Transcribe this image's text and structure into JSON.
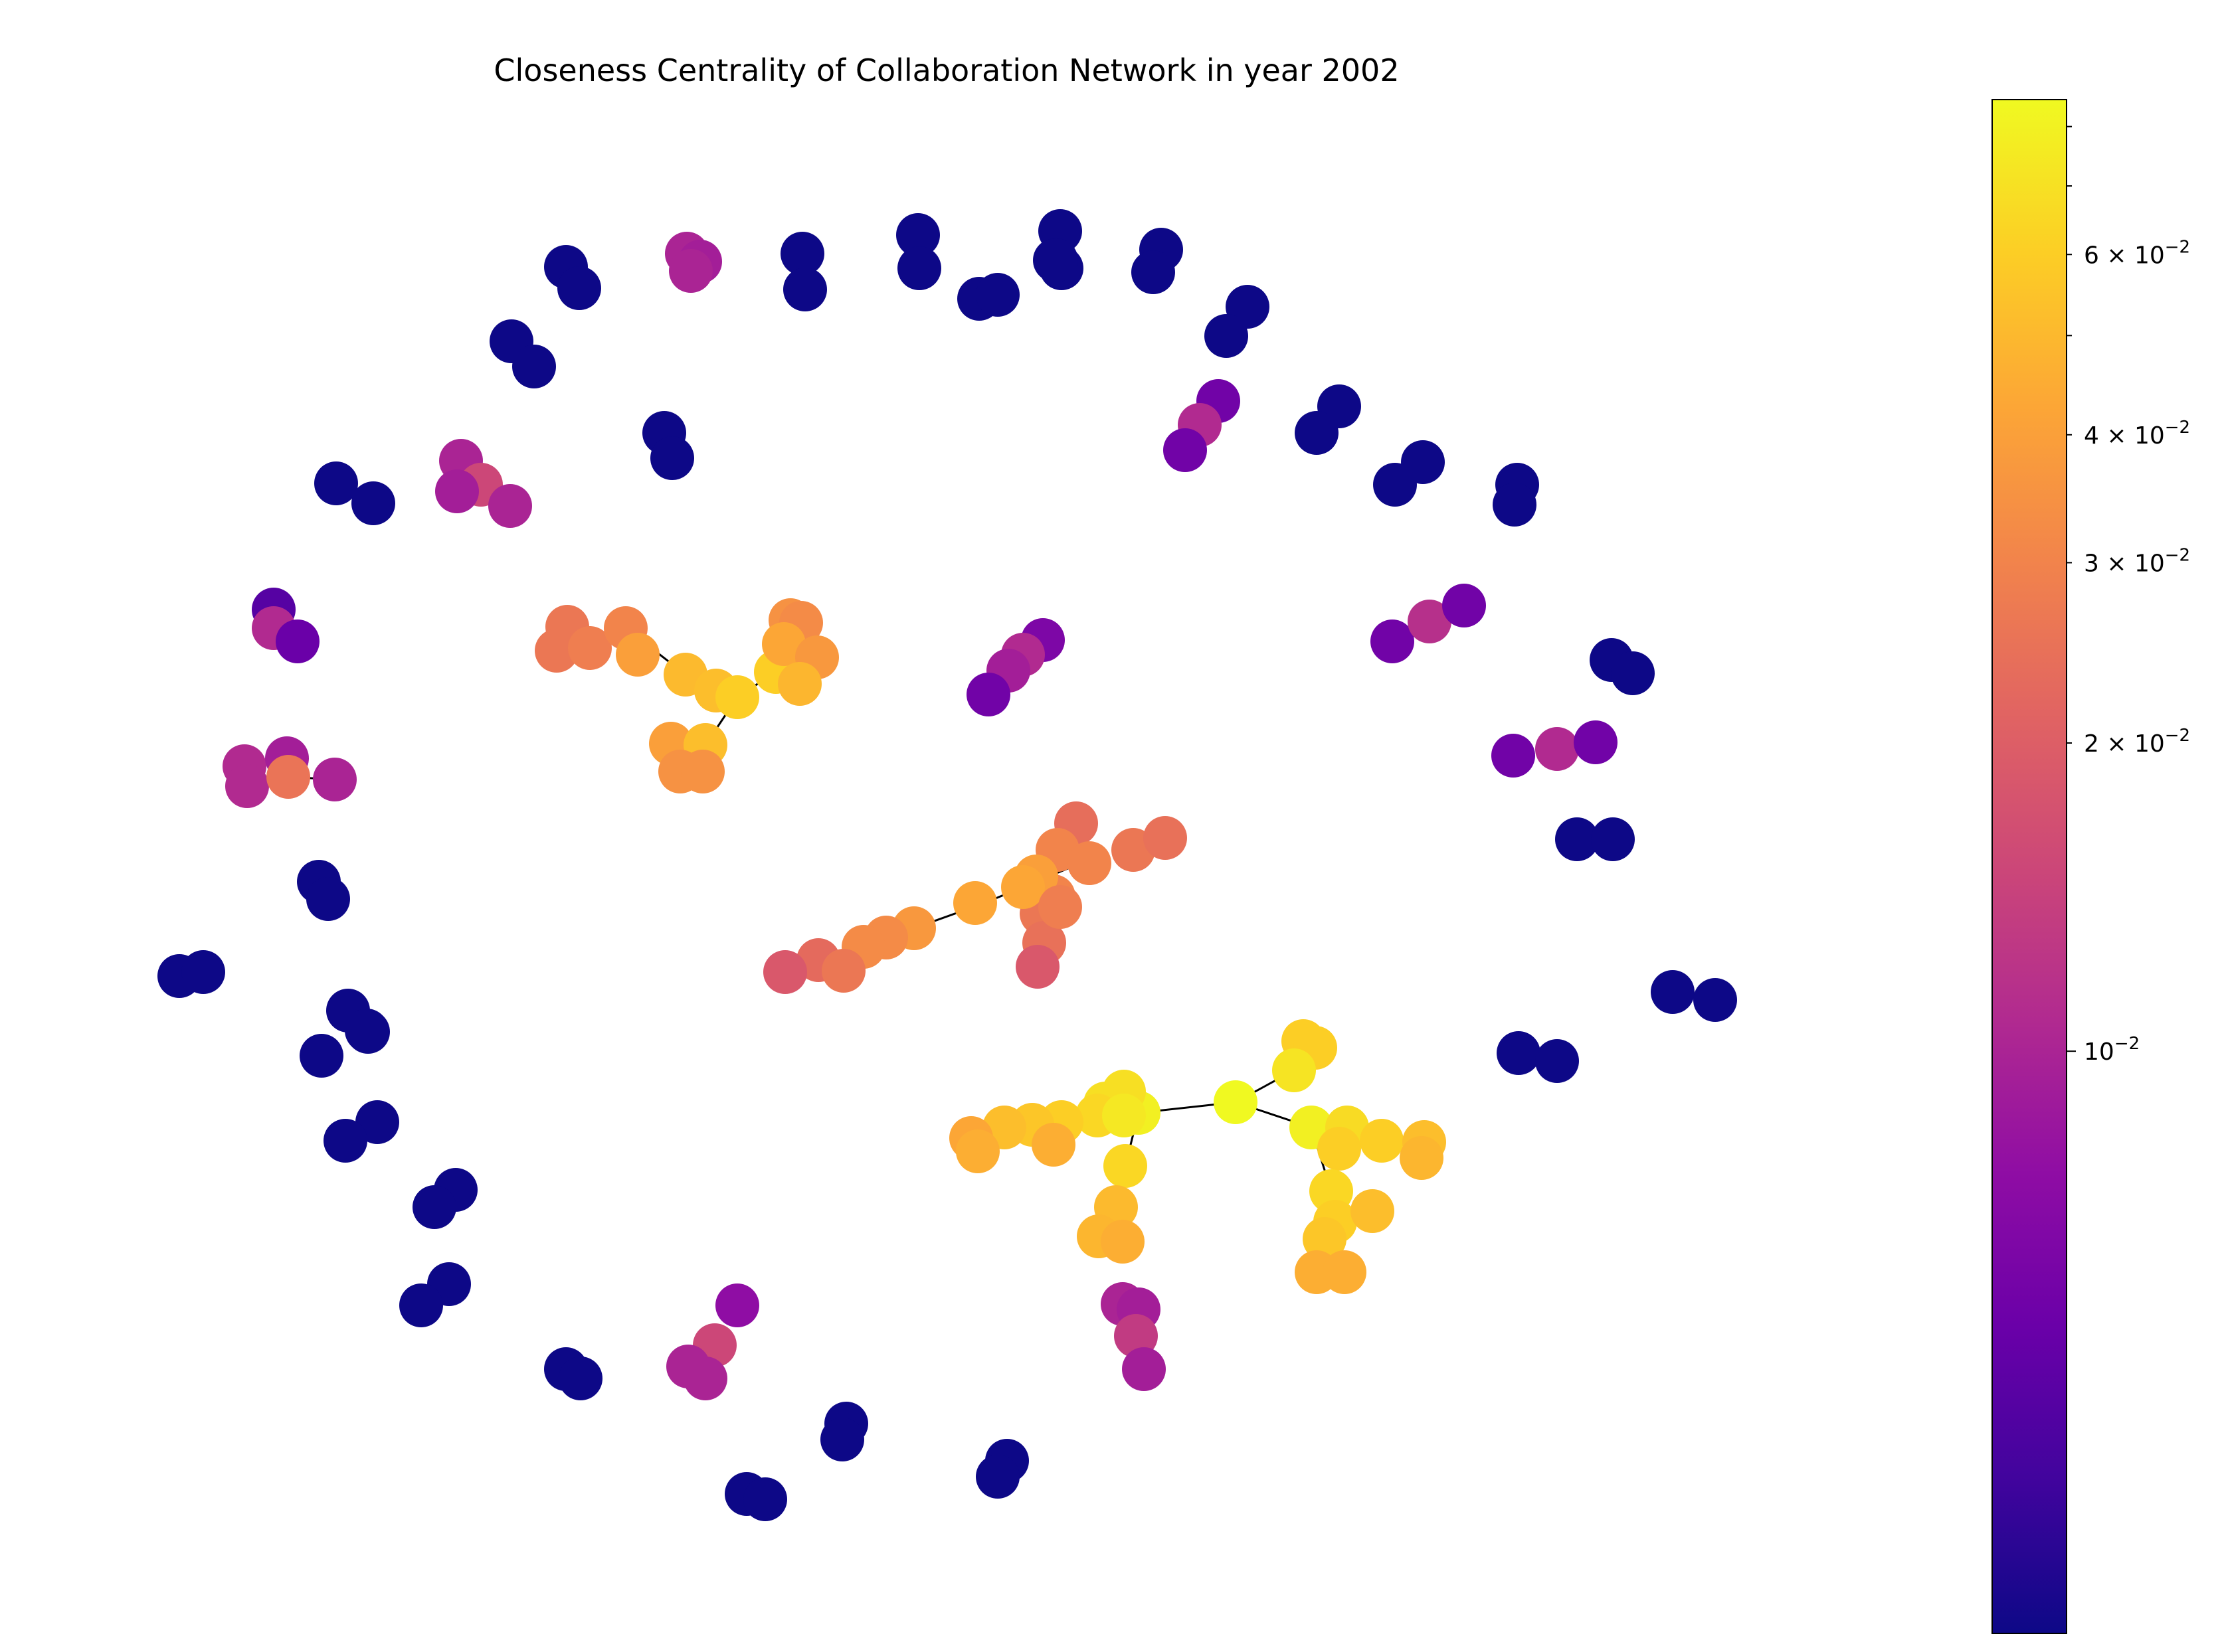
{
  "chart_data": {
    "type": "network",
    "title": "Closeness Centrality of Collaboration Network in year 2002",
    "colorbar": {
      "colormap": "plasma",
      "scale": "log",
      "range": [
        0.0027,
        0.085
      ],
      "major_ticks": [
        {
          "value": 0.01,
          "label": "10",
          "exp": "−2"
        }
      ],
      "minor_ticks": [
        {
          "value": 0.02,
          "mant": "2 × 10",
          "exp": "−2"
        },
        {
          "value": 0.03,
          "mant": "3 × 10",
          "exp": "−2"
        },
        {
          "value": 0.04,
          "mant": "4 × 10",
          "exp": "−2"
        },
        {
          "value": 0.06,
          "mant": "6 × 10",
          "exp": "−2"
        },
        {
          "value": 0.05,
          "mant": "",
          "exp": ""
        },
        {
          "value": 0.07,
          "mant": "",
          "exp": ""
        },
        {
          "value": 0.08,
          "mant": "",
          "exp": ""
        }
      ]
    },
    "node_color": "closeness centrality",
    "component_sizes": [
      2,
      2,
      2,
      2,
      2,
      2,
      2,
      2,
      2,
      2,
      2,
      2,
      2,
      2,
      2,
      2,
      2,
      2,
      2,
      2,
      2,
      2,
      2,
      2,
      2,
      2,
      2,
      2,
      2,
      3,
      3,
      3,
      3,
      3,
      3,
      4,
      4,
      4,
      4,
      4,
      5,
      18,
      20,
      31
    ],
    "colors": {
      "edge": "#000000",
      "pair_nodes": "#0d0887",
      "peak": "#f0f921"
    }
  }
}
